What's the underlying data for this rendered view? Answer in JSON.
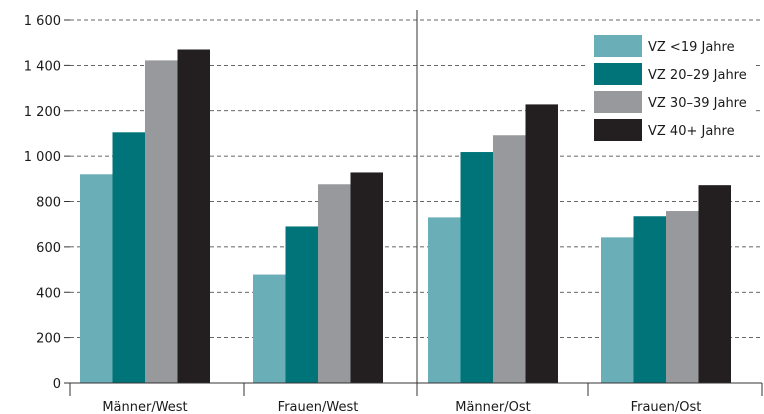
{
  "chart_data": {
    "type": "bar",
    "categories": [
      "Männer/West",
      "Frauen/West",
      "Männer/Ost",
      "Frauen/Ost"
    ],
    "series": [
      {
        "name": "VZ <19 Jahre",
        "color": "#6aaeb8",
        "values": [
          920,
          478,
          730,
          642
        ]
      },
      {
        "name": "VZ 20–29 Jahre",
        "color": "#007479",
        "values": [
          1105,
          690,
          1018,
          735
        ]
      },
      {
        "name": "VZ 30–39 Jahre",
        "color": "#98999d",
        "values": [
          1422,
          876,
          1092,
          758
        ]
      },
      {
        "name": "VZ 40+ Jahre",
        "color": "#231f20",
        "values": [
          1470,
          928,
          1228,
          872
        ]
      }
    ],
    "ylim": [
      0,
      1600
    ],
    "yticks": [
      0,
      200,
      400,
      600,
      800,
      1000,
      1200,
      1400,
      1600
    ],
    "ytick_labels": [
      "0",
      "200",
      "400",
      "600",
      "800",
      "1 000",
      "1 200",
      "1 400",
      "1 600"
    ],
    "grid": true,
    "legend_position": "top-right"
  }
}
